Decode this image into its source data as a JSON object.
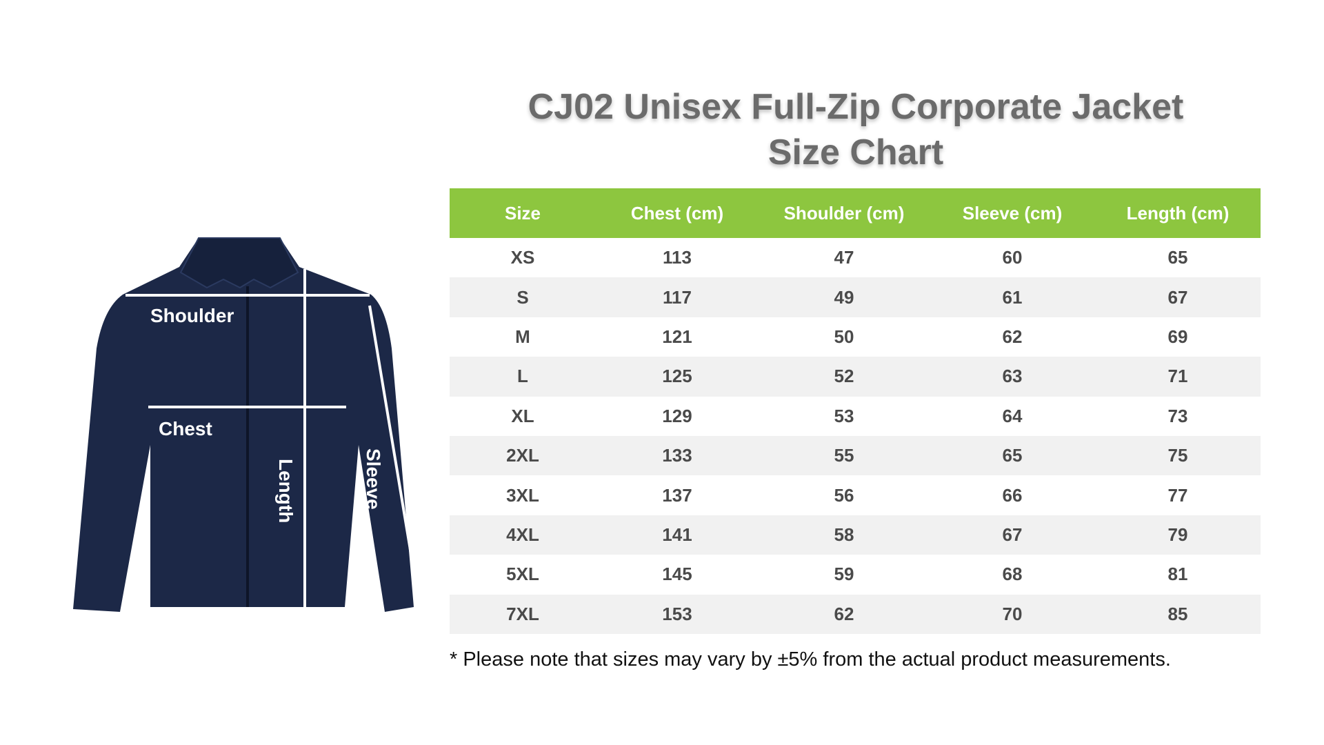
{
  "title": {
    "line1": "CJ02 Unisex Full-Zip Corporate Jacket",
    "line2": "Size Chart"
  },
  "figure": {
    "shoulder_label": "Shoulder",
    "chest_label": "Chest",
    "length_label": "Length",
    "sleeve_label": "Sleeve",
    "jacket_color": "#1c2847",
    "line_color": "#ffffff"
  },
  "table": {
    "header_color": "#8dc63f",
    "columns": [
      "Size",
      "Chest (cm)",
      "Shoulder (cm)",
      "Sleeve (cm)",
      "Length (cm)"
    ],
    "rows": [
      [
        "XS",
        "113",
        "47",
        "60",
        "65"
      ],
      [
        "S",
        "117",
        "49",
        "61",
        "67"
      ],
      [
        "M",
        "121",
        "50",
        "62",
        "69"
      ],
      [
        "L",
        "125",
        "52",
        "63",
        "71"
      ],
      [
        "XL",
        "129",
        "53",
        "64",
        "73"
      ],
      [
        "2XL",
        "133",
        "55",
        "65",
        "75"
      ],
      [
        "3XL",
        "137",
        "56",
        "66",
        "77"
      ],
      [
        "4XL",
        "141",
        "58",
        "67",
        "79"
      ],
      [
        "5XL",
        "145",
        "59",
        "68",
        "81"
      ],
      [
        "7XL",
        "153",
        "62",
        "70",
        "85"
      ]
    ]
  },
  "note": "* Please note that sizes may vary by ±5% from the actual product measurements."
}
